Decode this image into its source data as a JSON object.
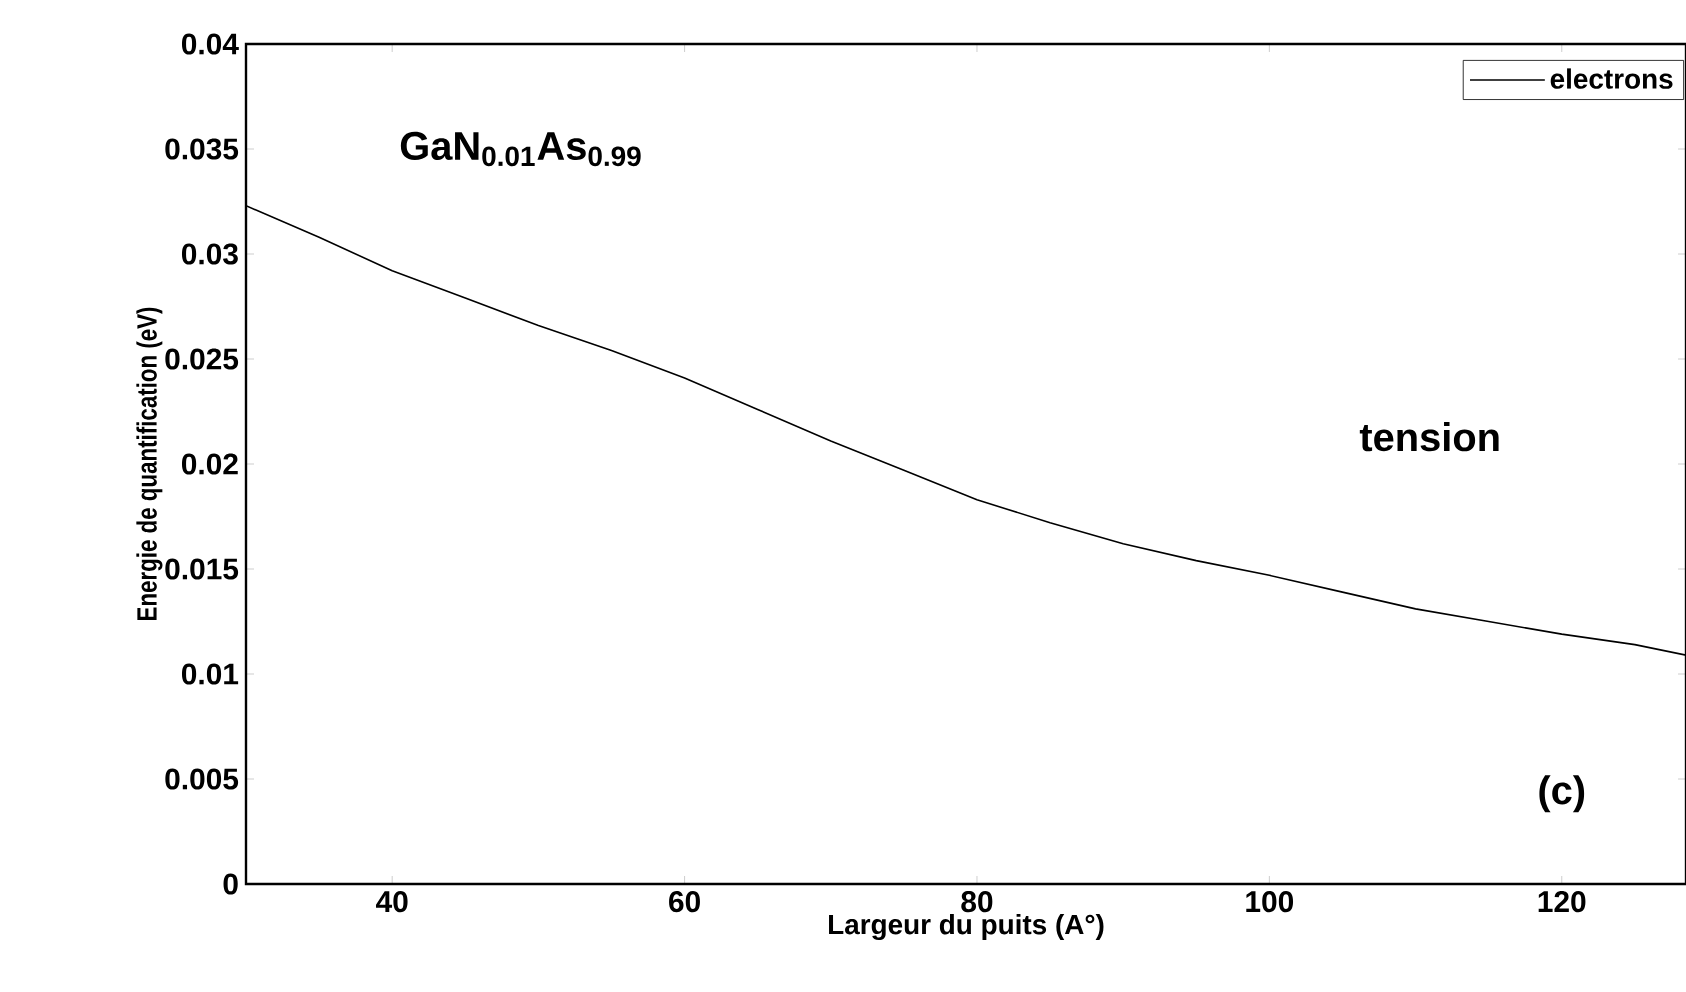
{
  "chart_data": {
    "type": "line",
    "xlabel": "Largeur du puits (A°)",
    "ylabel": "Energie de quantification (eV)",
    "annotations": [
      "GaN$_{0.01}$As$_{0.99}$",
      "tension",
      "(c)"
    ],
    "x": [
      30,
      35,
      40,
      45,
      50,
      55,
      60,
      65,
      70,
      75,
      80,
      85,
      90,
      95,
      100,
      105,
      110,
      115,
      120,
      125,
      128.5
    ],
    "series": [
      {
        "name": "electrons",
        "color": "#000000",
        "values": [
          0.0323,
          0.0308,
          0.0292,
          0.0279,
          0.0266,
          0.0254,
          0.0241,
          0.0226,
          0.0211,
          0.0197,
          0.0183,
          0.0172,
          0.0162,
          0.0154,
          0.0147,
          0.0139,
          0.0131,
          0.0125,
          0.0119,
          0.0114,
          0.0109
        ]
      }
    ],
    "xlim": [
      30,
      128.5
    ],
    "ylim": [
      0,
      0.04
    ],
    "xticks": [
      40,
      60,
      80,
      100,
      120
    ],
    "yticks": [
      0,
      0.005,
      0.01,
      0.015,
      0.02,
      0.025,
      0.03,
      0.035,
      0.04
    ],
    "legend": "top right",
    "grid": false,
    "marker": "none",
    "line_style": "solid"
  }
}
